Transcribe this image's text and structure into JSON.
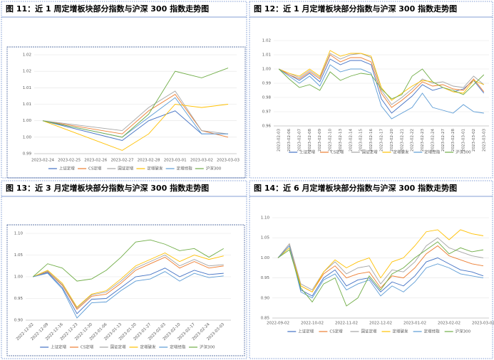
{
  "chart_data": [
    {
      "type": "line",
      "title": "图 11：近 1 周定增板块部分指数与沪深 300 指数走势图",
      "x": [
        "2023-02-24",
        "2023-02-27",
        "2023-02-28",
        "2023-03-01",
        "2023-03-02",
        "2023-03-03"
      ],
      "xticks": [
        "2023-02-24",
        "2023-02-25",
        "2023-02-26",
        "2023-02-27",
        "2023-02-28",
        "2023-03-01",
        "2023-03-02",
        "2023-03-03"
      ],
      "ylim": [
        0.99,
        1.02
      ],
      "yticks": [
        0.99,
        {
          "value": 0.995,
          "label": "1.00"
        },
        {
          "value": 1,
          "label": "1.00"
        },
        {
          "value": 1.005,
          "label": "1.01"
        },
        1.01,
        {
          "value": 1.015,
          "label": "1.02"
        },
        1.02
      ],
      "grid": true,
      "series": [
        {
          "name": "上证定增",
          "color": "#4472c4",
          "values": [
            1.0,
            0.994,
            1.0,
            1.003,
            0.996,
            0.996
          ]
        },
        {
          "name": "CS定增",
          "color": "#ed7d31",
          "values": [
            1.0,
            0.996,
            1.003,
            1.008,
            0.997,
            0.995
          ]
        },
        {
          "name": "国证定增",
          "color": "#a5a5a5",
          "values": [
            1.0,
            0.997,
            1.004,
            1.009,
            0.997,
            0.996
          ]
        },
        {
          "name": "定增破发",
          "color": "#ffc000",
          "values": [
            1.0,
            0.991,
            0.996,
            1.005,
            1.004,
            1.005
          ]
        },
        {
          "name": "定增经指",
          "color": "#5b9bd5",
          "values": [
            1.0,
            0.995,
            1.001,
            1.007,
            0.996,
            0.996
          ]
        },
        {
          "name": "沪深300",
          "color": "#70ad47",
          "values": [
            1.0,
            0.995,
            1.002,
            1.015,
            1.013,
            1.016
          ]
        }
      ]
    },
    {
      "type": "line",
      "title": "图 12：近 1 月定增板块部分指数与沪深 300 指数走势图",
      "categories": [
        "2023-02-03",
        "2023-02-06",
        "2023-02-07",
        "2023-02-08",
        "2023-02-09",
        "2023-02-10",
        "2023-02-13",
        "2023-02-14",
        "2023-02-15",
        "2023-02-16",
        "2023-02-17",
        "2023-02-20",
        "2023-02-21",
        "2023-02-22",
        "2023-02-23",
        "2023-02-24",
        "2023-02-27",
        "2023-02-28",
        "2023-03-01",
        "2023-03-02",
        "2023-03-03"
      ],
      "ylim": [
        0.96,
        1.02
      ],
      "yticks": [
        0.96,
        0.97,
        0.98,
        0.99,
        {
          "value": 1,
          "label": "1.00"
        },
        1.01,
        1.02
      ],
      "grid": true,
      "series": [
        {
          "name": "上证定增",
          "color": "#4472c4",
          "values": [
            1.0,
            0.996,
            0.992,
            0.997,
            0.991,
            1.007,
            1.003,
            1.006,
            1.006,
            1.003,
            0.979,
            0.969,
            0.975,
            0.981,
            0.989,
            0.985,
            0.987,
            0.984,
            0.986,
            0.992,
            0.983
          ]
        },
        {
          "name": "CS定增",
          "color": "#ed7d31",
          "values": [
            1.0,
            0.996,
            0.993,
            0.998,
            0.993,
            1.01,
            1.005,
            1.008,
            1.008,
            1.005,
            0.983,
            0.973,
            0.978,
            0.984,
            0.991,
            0.988,
            0.989,
            0.986,
            0.985,
            0.993,
            0.984
          ]
        },
        {
          "name": "国证定增",
          "color": "#a5a5a5",
          "values": [
            1.0,
            0.997,
            0.994,
            0.999,
            0.994,
            1.011,
            1.007,
            1.01,
            1.011,
            1.008,
            0.985,
            0.975,
            0.98,
            0.986,
            0.993,
            0.99,
            0.991,
            0.988,
            0.987,
            0.995,
            0.989
          ]
        },
        {
          "name": "定增破发",
          "color": "#ffc000",
          "values": [
            1.0,
            0.997,
            0.995,
            1.0,
            0.995,
            1.013,
            1.009,
            1.011,
            1.011,
            1.009,
            0.987,
            0.978,
            0.983,
            0.988,
            0.992,
            0.991,
            0.987,
            0.984,
            0.983,
            0.992,
            0.989
          ]
        },
        {
          "name": "定增经指",
          "color": "#5b9bd5",
          "values": [
            1.0,
            0.995,
            0.99,
            0.995,
            0.988,
            1.003,
            0.998,
            1.0,
            1.0,
            0.997,
            0.974,
            0.965,
            0.969,
            0.973,
            0.983,
            0.973,
            0.971,
            0.969,
            0.975,
            0.97,
            0.969
          ]
        },
        {
          "name": "沪深300",
          "color": "#70ad47",
          "values": [
            1.0,
            0.993,
            0.987,
            0.989,
            0.985,
            0.998,
            0.992,
            0.995,
            0.997,
            0.996,
            0.986,
            0.979,
            0.982,
            0.995,
            1.0,
            0.991,
            0.987,
            0.985,
            0.982,
            0.989,
            0.996
          ]
        }
      ]
    },
    {
      "type": "line",
      "title": "图 13：近 3 月定增板块部分指数与沪深 300 指数走势图",
      "categories": [
        "2022-12-02",
        "2022-12-09",
        "2022-12-16",
        "2022-12-23",
        "2022-12-30",
        "2023-01-06",
        "2023-01-13",
        "2023-01-20",
        "2023-01-27",
        "2023-02-03",
        "2023-02-10",
        "2023-02-17",
        "2023-02-24",
        "2023-03-03"
      ],
      "ylim": [
        0.9,
        1.1
      ],
      "yticks": [
        {
          "value": 0.9,
          "label": "0.90"
        },
        0.95,
        {
          "value": 1,
          "label": "1.00"
        },
        1.05,
        {
          "value": 1.1,
          "label": "1.10"
        }
      ],
      "grid": true,
      "series": [
        {
          "name": "上证定增",
          "color": "#4472c4",
          "values": [
            1.0,
            1.01,
            0.975,
            0.915,
            0.948,
            0.95,
            0.975,
            1.0,
            1.005,
            1.02,
            1.0,
            1.015,
            1.005,
            1.008
          ]
        },
        {
          "name": "CS定增",
          "color": "#ed7d31",
          "values": [
            1.0,
            1.012,
            0.98,
            0.925,
            0.955,
            0.96,
            0.985,
            1.015,
            1.03,
            1.045,
            1.02,
            1.035,
            1.02,
            1.025
          ]
        },
        {
          "name": "国证定增",
          "color": "#a5a5a5",
          "values": [
            1.0,
            1.013,
            0.982,
            0.928,
            0.958,
            0.965,
            0.99,
            1.02,
            1.035,
            1.05,
            1.025,
            1.04,
            1.025,
            1.028
          ]
        },
        {
          "name": "定增破发",
          "color": "#ffc000",
          "values": [
            1.0,
            1.015,
            0.985,
            0.93,
            0.96,
            0.968,
            0.995,
            1.025,
            1.04,
            1.055,
            1.035,
            1.05,
            1.04,
            1.048
          ]
        },
        {
          "name": "定增经指",
          "color": "#5b9bd5",
          "values": [
            1.0,
            1.008,
            0.972,
            0.905,
            0.94,
            0.942,
            0.968,
            0.99,
            0.995,
            1.012,
            0.99,
            1.008,
            0.998,
            1.002
          ]
        },
        {
          "name": "沪深300",
          "color": "#70ad47",
          "values": [
            1.0,
            1.03,
            1.02,
            0.99,
            0.995,
            1.015,
            1.045,
            1.08,
            1.085,
            1.075,
            1.06,
            1.065,
            1.045,
            1.065
          ]
        }
      ]
    },
    {
      "type": "line",
      "title": "图 14：近 6 月定增板块部分指数与沪深 300 指数走势图",
      "categories": [
        "2022-09-02",
        null,
        null,
        "2022-10-02",
        null,
        null,
        "2022-11-02",
        null,
        null,
        "2022-12-02",
        null,
        null,
        "2023-01-02",
        null,
        null,
        "2023-02-02",
        null,
        null,
        "2023-03-02"
      ],
      "ylim": [
        0.85,
        1.1
      ],
      "yticks": [
        0.85,
        {
          "value": 0.9,
          "label": "0.90"
        },
        0.95,
        {
          "value": 1,
          "label": "1.00"
        },
        1.05,
        {
          "value": 1.1,
          "label": "1.10"
        }
      ],
      "grid": true,
      "series": [
        {
          "name": "上证定增",
          "color": "#4472c4",
          "values": [
            1.0,
            1.03,
            0.92,
            0.905,
            0.95,
            0.97,
            0.93,
            0.945,
            0.95,
            0.915,
            0.94,
            0.93,
            0.955,
            0.99,
            1.0,
            0.985,
            0.97,
            0.965,
            0.955
          ]
        },
        {
          "name": "CS定增",
          "color": "#ed7d31",
          "values": [
            1.0,
            1.035,
            0.93,
            0.915,
            0.96,
            0.98,
            0.95,
            0.96,
            0.965,
            0.925,
            0.955,
            0.95,
            0.975,
            1.01,
            1.03,
            1.005,
            0.995,
            0.985,
            0.98
          ]
        },
        {
          "name": "国证定增",
          "color": "#a5a5a5",
          "values": [
            1.0,
            1.035,
            0.935,
            0.92,
            0.965,
            0.99,
            0.96,
            0.975,
            0.98,
            0.935,
            0.97,
            0.965,
            0.99,
            1.03,
            1.05,
            1.025,
            1.015,
            1.005,
            1.0
          ]
        },
        {
          "name": "定增破发",
          "color": "#ffc000",
          "values": [
            1.0,
            1.025,
            0.93,
            0.915,
            0.965,
            0.995,
            0.975,
            0.99,
            1.0,
            0.95,
            0.99,
            1.0,
            1.03,
            1.065,
            1.07,
            1.045,
            1.07,
            1.06,
            1.055
          ]
        },
        {
          "name": "定增经指",
          "color": "#5b9bd5",
          "values": [
            1.0,
            1.03,
            0.915,
            0.9,
            0.945,
            0.96,
            0.92,
            0.935,
            0.945,
            0.905,
            0.93,
            0.915,
            0.94,
            0.975,
            0.985,
            0.975,
            0.96,
            0.955,
            0.95
          ]
        },
        {
          "name": "沪深300",
          "color": "#70ad47",
          "values": [
            1.0,
            1.02,
            0.925,
            0.89,
            0.935,
            0.95,
            0.88,
            0.9,
            0.955,
            0.92,
            0.96,
            0.975,
            1.0,
            1.02,
            1.04,
            1.01,
            1.025,
            1.015,
            1.02
          ]
        }
      ]
    }
  ]
}
